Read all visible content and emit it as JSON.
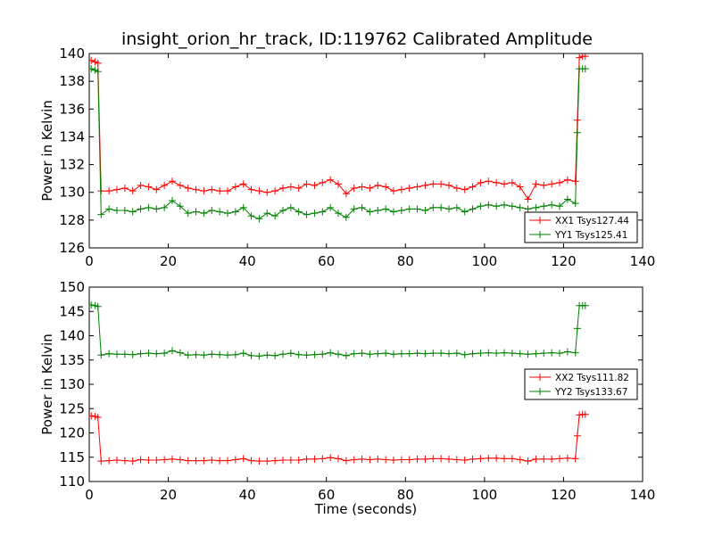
{
  "chart_data": [
    {
      "type": "line",
      "title": "insight_orion_hr_track, ID:119762 Calibrated Amplitude",
      "xlabel": "",
      "ylabel": "Power in Kelvin",
      "xlim": [
        0,
        140
      ],
      "ylim": [
        126,
        140
      ],
      "xticks": [
        "0",
        "20",
        "40",
        "60",
        "80",
        "100",
        "120",
        "140"
      ],
      "yticks": [
        "126",
        "128",
        "130",
        "132",
        "134",
        "136",
        "138",
        "140"
      ],
      "grid": false,
      "legend_position": "lower-right",
      "series": [
        {
          "name": "XX1 Tsys127.44",
          "color": "#ff0000",
          "marker": "+",
          "x": [
            0.5,
            1.5,
            2.2,
            3,
            5,
            7,
            9,
            11,
            13,
            15,
            17,
            19,
            21,
            23,
            25,
            27,
            29,
            31,
            33,
            35,
            37,
            39,
            41,
            43,
            45,
            47,
            49,
            51,
            53,
            55,
            57,
            59,
            61,
            63,
            65,
            67,
            69,
            71,
            73,
            75,
            77,
            79,
            81,
            83,
            85,
            87,
            89,
            91,
            93,
            95,
            97,
            99,
            101,
            103,
            105,
            107,
            109,
            111,
            113,
            115,
            117,
            119,
            121,
            123,
            123.5,
            124,
            124.8,
            125.5
          ],
          "y": [
            139.5,
            139.4,
            139.3,
            130.1,
            130.1,
            130.2,
            130.3,
            130.1,
            130.5,
            130.4,
            130.2,
            130.5,
            130.8,
            130.5,
            130.3,
            130.2,
            130.1,
            130.2,
            130.1,
            130.1,
            130.4,
            130.6,
            130.2,
            130.1,
            130.0,
            130.1,
            130.3,
            130.4,
            130.3,
            130.6,
            130.5,
            130.7,
            130.9,
            130.6,
            129.9,
            130.3,
            130.4,
            130.3,
            130.5,
            130.4,
            130.1,
            130.2,
            130.3,
            130.4,
            130.5,
            130.6,
            130.6,
            130.5,
            130.3,
            130.2,
            130.4,
            130.7,
            130.8,
            130.7,
            130.6,
            130.7,
            130.4,
            129.5,
            130.6,
            130.5,
            130.6,
            130.7,
            130.9,
            130.8,
            135.2,
            139.7,
            139.8,
            139.8
          ]
        },
        {
          "name": "YY1 Tsys125.41",
          "color": "#008000",
          "marker": "+",
          "x": [
            0.5,
            1.5,
            2.2,
            3,
            5,
            7,
            9,
            11,
            13,
            15,
            17,
            19,
            21,
            23,
            25,
            27,
            29,
            31,
            33,
            35,
            37,
            39,
            41,
            43,
            45,
            47,
            49,
            51,
            53,
            55,
            57,
            59,
            61,
            63,
            65,
            67,
            69,
            71,
            73,
            75,
            77,
            79,
            81,
            83,
            85,
            87,
            89,
            91,
            93,
            95,
            97,
            99,
            101,
            103,
            105,
            107,
            109,
            111,
            113,
            115,
            117,
            119,
            121,
            123,
            123.5,
            124,
            124.8,
            125.5
          ],
          "y": [
            138.9,
            138.8,
            138.7,
            128.4,
            128.8,
            128.7,
            128.7,
            128.6,
            128.8,
            128.9,
            128.8,
            128.9,
            129.4,
            129.0,
            128.5,
            128.6,
            128.5,
            128.7,
            128.6,
            128.5,
            128.6,
            128.9,
            128.3,
            128.1,
            128.5,
            128.3,
            128.7,
            128.9,
            128.6,
            128.4,
            128.5,
            128.6,
            128.9,
            128.5,
            128.2,
            128.8,
            128.9,
            128.6,
            128.7,
            128.8,
            128.6,
            128.7,
            128.8,
            128.8,
            128.7,
            128.9,
            128.9,
            128.8,
            128.9,
            128.6,
            128.8,
            129.0,
            129.1,
            129.0,
            129.1,
            129.0,
            128.9,
            128.8,
            128.9,
            129.0,
            129.1,
            129.0,
            129.5,
            129.2,
            134.3,
            138.9,
            138.9,
            138.9
          ]
        }
      ]
    },
    {
      "type": "line",
      "title": "",
      "xlabel": "Time (seconds)",
      "ylabel": "Power in Kelvin",
      "xlim": [
        0,
        140
      ],
      "ylim": [
        110,
        150
      ],
      "xticks": [
        "0",
        "20",
        "40",
        "60",
        "80",
        "100",
        "120",
        "140"
      ],
      "yticks": [
        "110",
        "115",
        "120",
        "125",
        "130",
        "135",
        "140",
        "145",
        "150"
      ],
      "grid": false,
      "legend_position": "center-right",
      "series": [
        {
          "name": "XX2 Tsys111.82",
          "color": "#ff0000",
          "marker": "+",
          "x": [
            0.5,
            1.5,
            2.2,
            3,
            5,
            7,
            9,
            11,
            13,
            15,
            17,
            19,
            21,
            23,
            25,
            27,
            29,
            31,
            33,
            35,
            37,
            39,
            41,
            43,
            45,
            47,
            49,
            51,
            53,
            55,
            57,
            59,
            61,
            63,
            65,
            67,
            69,
            71,
            73,
            75,
            77,
            79,
            81,
            83,
            85,
            87,
            89,
            91,
            93,
            95,
            97,
            99,
            101,
            103,
            105,
            107,
            109,
            111,
            113,
            115,
            117,
            119,
            121,
            123,
            123.5,
            124,
            124.8,
            125.5
          ],
          "y": [
            123.5,
            123.4,
            123.2,
            114.2,
            114.3,
            114.4,
            114.3,
            114.2,
            114.5,
            114.4,
            114.4,
            114.5,
            114.6,
            114.5,
            114.3,
            114.3,
            114.3,
            114.4,
            114.3,
            114.3,
            114.5,
            114.7,
            114.3,
            114.2,
            114.2,
            114.3,
            114.4,
            114.4,
            114.4,
            114.6,
            114.6,
            114.7,
            114.9,
            114.7,
            114.3,
            114.5,
            114.6,
            114.5,
            114.6,
            114.5,
            114.4,
            114.5,
            114.5,
            114.6,
            114.6,
            114.7,
            114.7,
            114.6,
            114.5,
            114.4,
            114.6,
            114.7,
            114.8,
            114.8,
            114.7,
            114.7,
            114.5,
            114.2,
            114.6,
            114.6,
            114.6,
            114.7,
            114.8,
            114.7,
            119.4,
            123.7,
            123.8,
            123.8
          ]
        },
        {
          "name": "YY2 Tsys133.67",
          "color": "#008000",
          "marker": "+",
          "x": [
            0.5,
            1.5,
            2.2,
            3,
            5,
            7,
            9,
            11,
            13,
            15,
            17,
            19,
            21,
            23,
            25,
            27,
            29,
            31,
            33,
            35,
            37,
            39,
            41,
            43,
            45,
            47,
            49,
            51,
            53,
            55,
            57,
            59,
            61,
            63,
            65,
            67,
            69,
            71,
            73,
            75,
            77,
            79,
            81,
            83,
            85,
            87,
            89,
            91,
            93,
            95,
            97,
            99,
            101,
            103,
            105,
            107,
            109,
            111,
            113,
            115,
            117,
            119,
            121,
            123,
            123.5,
            124,
            124.8,
            125.5
          ],
          "y": [
            146.3,
            146.2,
            146.0,
            136.0,
            136.3,
            136.2,
            136.2,
            136.1,
            136.3,
            136.4,
            136.3,
            136.4,
            136.9,
            136.5,
            136.0,
            136.1,
            136.0,
            136.2,
            136.1,
            136.0,
            136.1,
            136.4,
            135.9,
            135.8,
            136.0,
            135.9,
            136.2,
            136.4,
            136.1,
            136.0,
            136.1,
            136.2,
            136.5,
            136.2,
            135.9,
            136.3,
            136.4,
            136.2,
            136.3,
            136.4,
            136.2,
            136.3,
            136.3,
            136.4,
            136.3,
            136.4,
            136.4,
            136.3,
            136.4,
            136.1,
            136.3,
            136.4,
            136.5,
            136.4,
            136.5,
            136.4,
            136.3,
            136.2,
            136.3,
            136.4,
            136.5,
            136.4,
            136.7,
            136.5,
            141.5,
            146.2,
            146.2,
            146.2
          ]
        }
      ]
    }
  ]
}
